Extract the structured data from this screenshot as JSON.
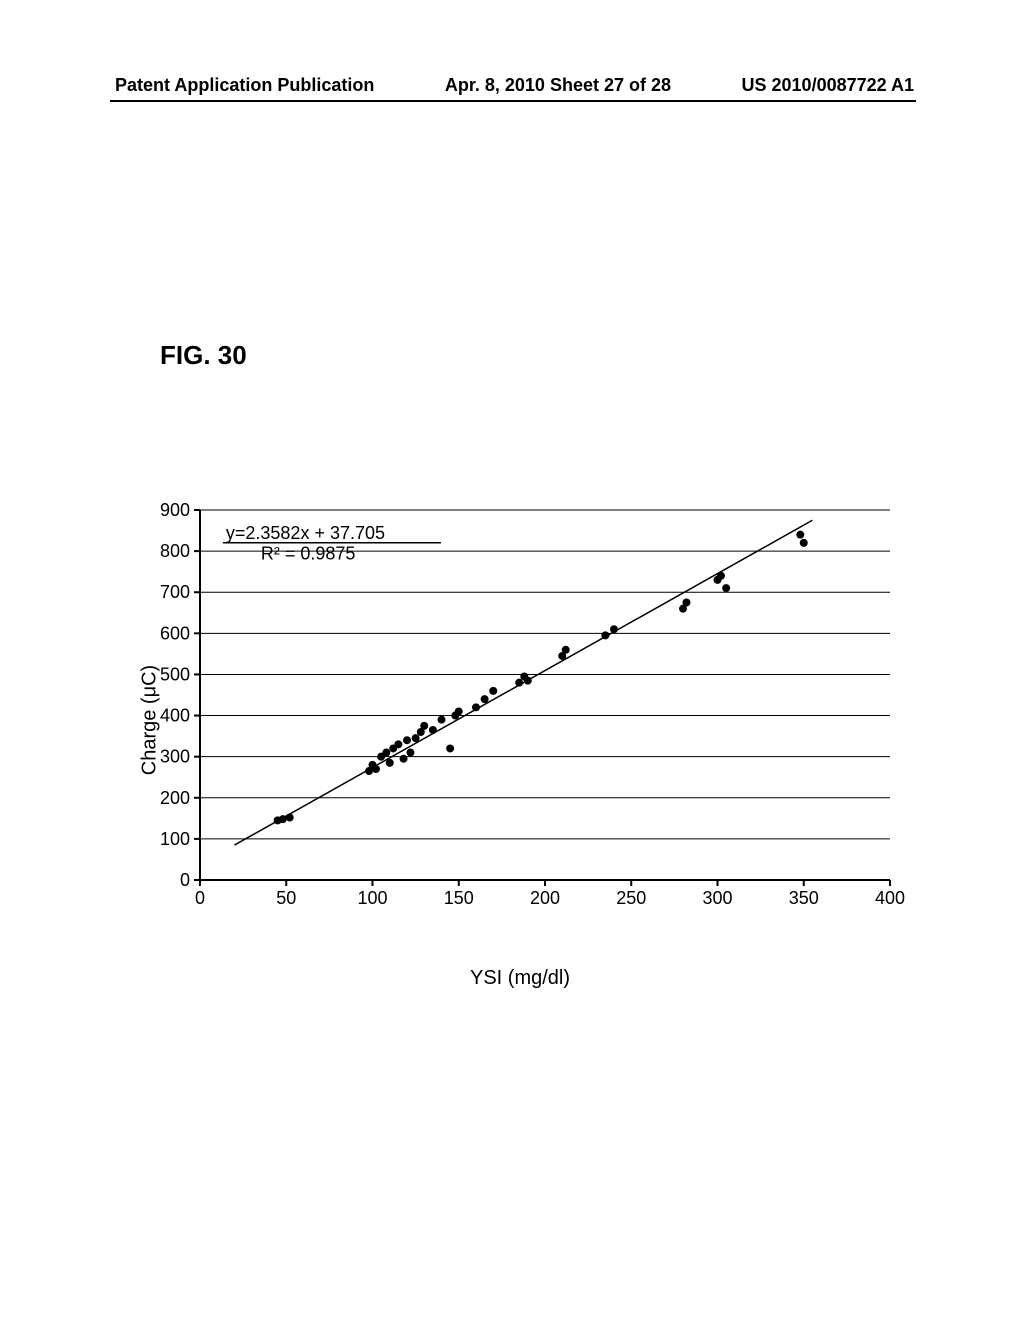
{
  "header": {
    "left": "Patent Application Publication",
    "center": "Apr. 8, 2010  Sheet 27 of 28",
    "right": "US 2010/0087722 A1"
  },
  "figure_label": "FIG.  30",
  "chart": {
    "type": "scatter",
    "equation_line1": "y=2.3582x  +  37.705",
    "equation_line2": "R² = 0.9875",
    "ylabel": "Charge (μC)",
    "xlabel": "YSI (mg/dl)",
    "xlim": [
      0,
      400
    ],
    "ylim": [
      0,
      900
    ],
    "xtick_step": 50,
    "ytick_step": 100,
    "background_color": "#ffffff",
    "grid_color": "#000000",
    "axis_color": "#000000",
    "point_color": "#000000",
    "line_color": "#000000",
    "point_radius": 4,
    "line_width": 1.5,
    "axis_width": 2,
    "grid_width": 1,
    "tick_fontsize": 18,
    "label_fontsize": 20,
    "eq_fontsize": 18,
    "points": [
      [
        45,
        145
      ],
      [
        48,
        148
      ],
      [
        52,
        152
      ],
      [
        98,
        265
      ],
      [
        100,
        280
      ],
      [
        102,
        270
      ],
      [
        105,
        300
      ],
      [
        108,
        310
      ],
      [
        110,
        285
      ],
      [
        112,
        320
      ],
      [
        115,
        330
      ],
      [
        118,
        295
      ],
      [
        120,
        340
      ],
      [
        122,
        310
      ],
      [
        125,
        345
      ],
      [
        128,
        360
      ],
      [
        130,
        375
      ],
      [
        135,
        365
      ],
      [
        140,
        390
      ],
      [
        145,
        320
      ],
      [
        148,
        400
      ],
      [
        150,
        410
      ],
      [
        160,
        420
      ],
      [
        165,
        440
      ],
      [
        170,
        460
      ],
      [
        185,
        480
      ],
      [
        188,
        495
      ],
      [
        190,
        485
      ],
      [
        210,
        545
      ],
      [
        212,
        560
      ],
      [
        235,
        595
      ],
      [
        240,
        610
      ],
      [
        280,
        660
      ],
      [
        282,
        675
      ],
      [
        300,
        730
      ],
      [
        302,
        740
      ],
      [
        305,
        710
      ],
      [
        348,
        840
      ],
      [
        350,
        820
      ]
    ],
    "regression_line": {
      "x1": 20,
      "y1": 85,
      "x2": 355,
      "y2": 875
    }
  }
}
